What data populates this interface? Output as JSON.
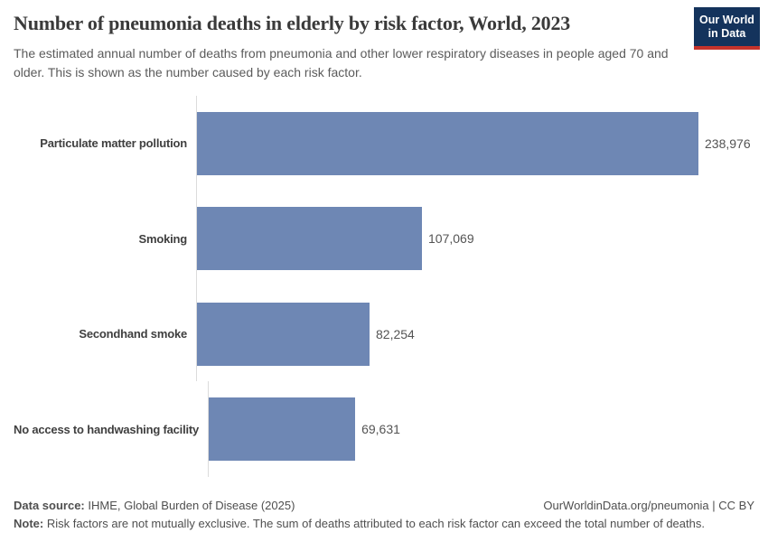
{
  "header": {
    "title": "Number of pneumonia deaths in elderly by risk factor, World, 2023",
    "subtitle": "The estimated annual number of deaths from pneumonia and other lower respiratory diseases in people aged 70 and older. This is shown as the number caused by each risk factor.",
    "logo": {
      "line1": "Our World",
      "line2": "in Data"
    }
  },
  "chart_data": {
    "type": "bar",
    "orientation": "horizontal",
    "title": "Number of pneumonia deaths in elderly by risk factor, World, 2023",
    "categories": [
      "Particulate matter pollution",
      "Smoking",
      "Secondhand smoke",
      "No access to handwashing facility"
    ],
    "values": [
      238976,
      107069,
      82254,
      69631
    ],
    "value_labels": [
      "238,976",
      "107,069",
      "82,254",
      "69,631"
    ],
    "xlabel": "",
    "ylabel": "",
    "xlim": [
      0,
      238976
    ],
    "grid": false,
    "legend": false,
    "bar_color": "#6e87b4"
  },
  "footer": {
    "data_source_label": "Data source:",
    "data_source_value": " IHME, Global Burden of Disease (2025)",
    "credit": "OurWorldinData.org/pneumonia | CC BY",
    "note_label": "Note:",
    "note_text": " Risk factors are not mutually exclusive. The sum of deaths attributed to each risk factor can exceed the total number of deaths."
  },
  "colors": {
    "bar": "#6e87b4",
    "axis_line": "#dcdcdc",
    "title_text": "#3a3a3a",
    "subtitle_text": "#5b5b5b",
    "label_text": "#3f3f3f",
    "value_text": "#545454",
    "footer_text": "#4f4f4f",
    "logo_bg": "#14335c",
    "logo_red": "#c5332b"
  }
}
